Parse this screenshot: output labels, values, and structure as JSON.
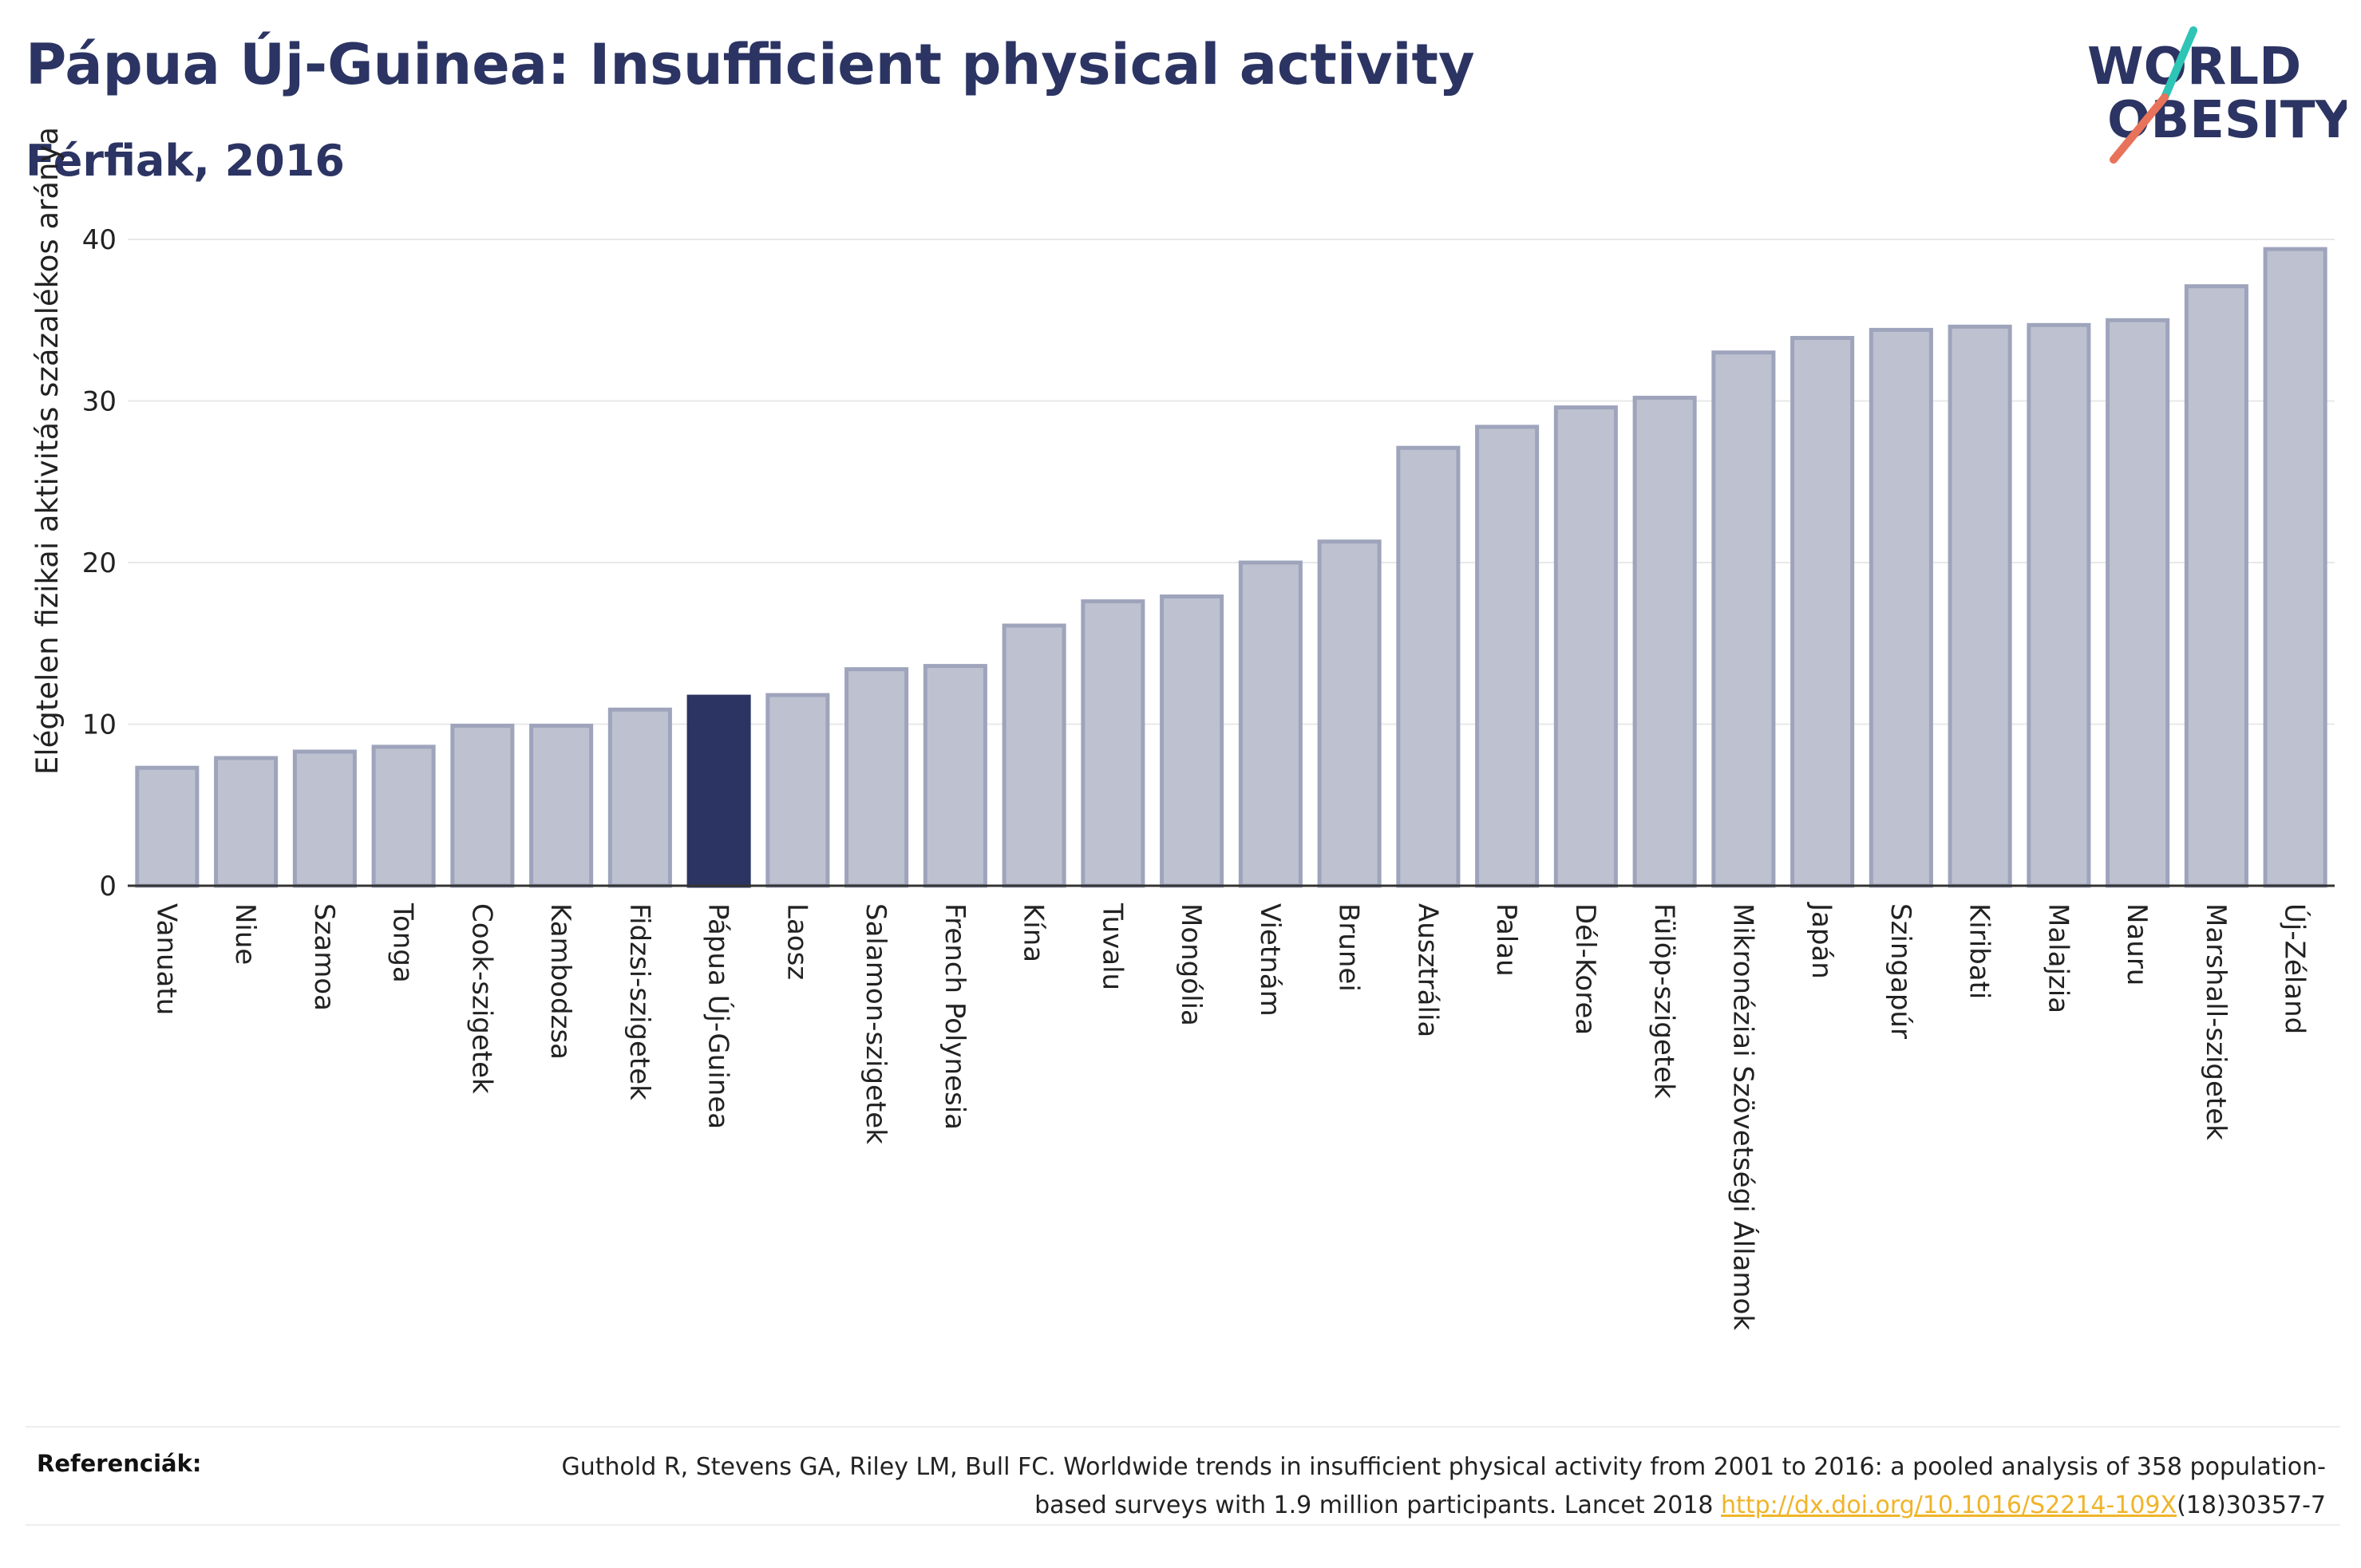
{
  "title": "Pápua Új-Guinea: Insufficient physical activity",
  "subtitle": "Férfiak, 2016",
  "logo": {
    "line1": "WORLD",
    "line2": "OBESITY",
    "accent1": "#2ec4b6",
    "accent2": "#e8735a"
  },
  "references": {
    "label": "Referenciák:",
    "text_before": "Guthold R, Stevens GA, Riley LM, Bull FC. Worldwide trends in insufficient physical activity from 2001 to 2016: a pooled analysis of 358 population-based surveys with 1.9 million participants. Lancet 2018 ",
    "link": "http://dx.doi.org/10.1016/S2214-109X",
    "text_after": "(18)30357-7"
  },
  "colors": {
    "bar": "#bec2d0",
    "bar_edge": "#9ea4bb",
    "highlight": "#2b3462",
    "grid": "#e8e8e8",
    "axis": "#333333"
  },
  "chart_data": {
    "type": "bar",
    "ylabel": "Elégtelen fizikai aktivitás százalékos aránya",
    "ylim": [
      0,
      40
    ],
    "yticks": [
      0,
      10,
      20,
      30,
      40
    ],
    "grid": true,
    "highlight": "Pápua Új-Guinea",
    "categories": [
      "Vanuatu",
      "Niue",
      "Szamoa",
      "Tonga",
      "Cook-szigetek",
      "Kambodzsa",
      "Fidzsi-szigetek",
      "Pápua Új-Guinea",
      "Laosz",
      "Salamon-szigetek",
      "French Polynesia",
      "Kína",
      "Tuvalu",
      "Mongólia",
      "Vietnám",
      "Brunei",
      "Ausztrália",
      "Palau",
      "Dél-Korea",
      "Fülöp-szigetek",
      "Mikronéziai Szövetségi Államok",
      "Japán",
      "Szingapúr",
      "Kiribati",
      "Malajzia",
      "Nauru",
      "Marshall-szigetek",
      "Új-Zéland"
    ],
    "values": [
      7.3,
      7.9,
      8.3,
      8.6,
      9.9,
      9.9,
      10.9,
      11.7,
      11.8,
      13.4,
      13.6,
      16.1,
      17.6,
      17.9,
      20.0,
      21.3,
      27.1,
      28.4,
      29.6,
      30.2,
      33.0,
      33.9,
      34.4,
      34.6,
      34.7,
      35.0,
      37.1,
      39.4
    ]
  }
}
